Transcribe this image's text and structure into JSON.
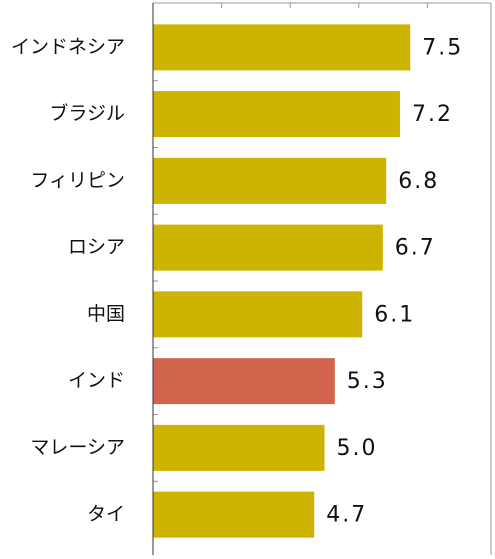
{
  "chart_data": {
    "type": "bar",
    "orientation": "horizontal",
    "categories": [
      "インドネシア",
      "ブラジル",
      "フィリピン",
      "ロシア",
      "中国",
      "インド",
      "マレーシア",
      "タイ"
    ],
    "values": [
      7.5,
      7.2,
      6.8,
      6.7,
      6.1,
      5.3,
      5.0,
      4.7
    ],
    "value_labels": [
      "7.5",
      "7.2",
      "6.8",
      "6.7",
      "6.1",
      "5.3",
      "5.0",
      "4.7"
    ],
    "colors": [
      "#ccb400",
      "#ccb400",
      "#ccb400",
      "#ccb400",
      "#ccb400",
      "#d1644a",
      "#ccb400",
      "#ccb400"
    ],
    "xlim": [
      0,
      10
    ],
    "xticks": [
      0,
      2,
      4,
      6,
      8,
      10
    ]
  }
}
